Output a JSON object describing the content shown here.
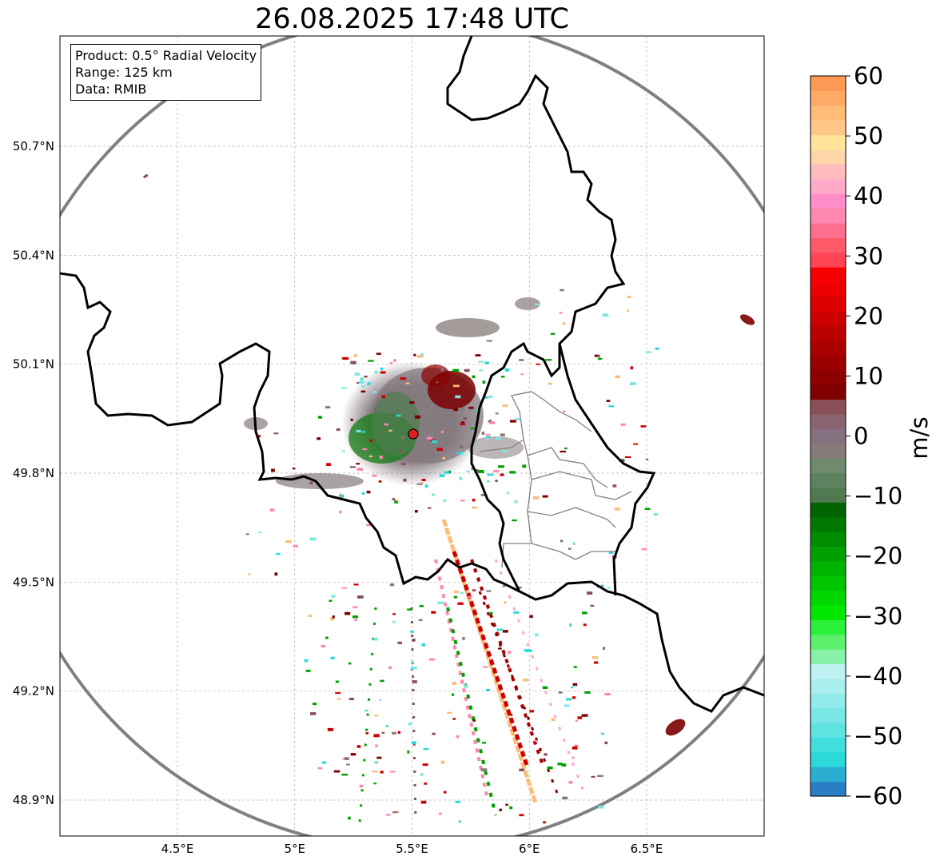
{
  "title": "26.08.2025 17:48 UTC",
  "info": {
    "product": "Product: 0.5° Radial Velocity",
    "range": "Range: 125 km",
    "source": "Data: RMIB"
  },
  "map": {
    "lon_range": [
      4.0,
      7.0
    ],
    "lat_range": [
      48.8,
      50.99
    ],
    "lat_ticks": [
      {
        "value": 50.7,
        "label": "50.7°N"
      },
      {
        "value": 50.4,
        "label": "50.4°N"
      },
      {
        "value": 50.1,
        "label": "50.1°N"
      },
      {
        "value": 49.8,
        "label": "49.8°N"
      },
      {
        "value": 49.5,
        "label": "49.5°N"
      },
      {
        "value": 49.2,
        "label": "49.2°N"
      },
      {
        "value": 48.9,
        "label": "48.9°N"
      }
    ],
    "lon_ticks": [
      {
        "value": 4.5,
        "label": "4.5°E"
      },
      {
        "value": 5.0,
        "label": "5°E"
      },
      {
        "value": 5.5,
        "label": "5.5°E"
      },
      {
        "value": 6.0,
        "label": "6°E"
      },
      {
        "value": 6.5,
        "label": "6.5°E"
      }
    ],
    "radar_site": {
      "lon": 5.505,
      "lat": 49.915
    },
    "grid": true
  },
  "colorbar": {
    "label": "m/s",
    "min": -60,
    "max": 60,
    "tick_labels": [
      "60",
      "50",
      "40",
      "30",
      "20",
      "10",
      "0",
      "−10",
      "−20",
      "−30",
      "−40",
      "−50",
      "−60"
    ],
    "tick_values": [
      60,
      50,
      40,
      30,
      20,
      10,
      0,
      -10,
      -20,
      -30,
      -40,
      -50,
      -60
    ],
    "colors": [
      "#2a7fc4",
      "#2aaed2",
      "#2cd8d8",
      "#42dddd",
      "#5ee2e2",
      "#7ae6e6",
      "#93eaea",
      "#abeeee",
      "#bff0f2",
      "#88f0a8",
      "#5cf06c",
      "#2cf03c",
      "#00e800",
      "#00d600",
      "#00c400",
      "#00b200",
      "#00a000",
      "#008c00",
      "#007800",
      "#006400",
      "#4f7a4f",
      "#5d8260",
      "#6f8a6c",
      "#867a7a",
      "#857080",
      "#8a6470",
      "#8a5058",
      "#800000",
      "#8c0000",
      "#9a0000",
      "#aa0000",
      "#bb0000",
      "#cc0000",
      "#dd0000",
      "#ee0000",
      "#f70000",
      "#ff4455",
      "#ff5a6a",
      "#ff7090",
      "#ff88b0",
      "#ff8ec8",
      "#ffaac8",
      "#ffbcbc",
      "#ffd6a8",
      "#ffe49a",
      "#ffc888",
      "#ffbb78",
      "#ffaa66",
      "#ff9955"
    ],
    "color_bounds": [
      -60,
      60
    ]
  }
}
